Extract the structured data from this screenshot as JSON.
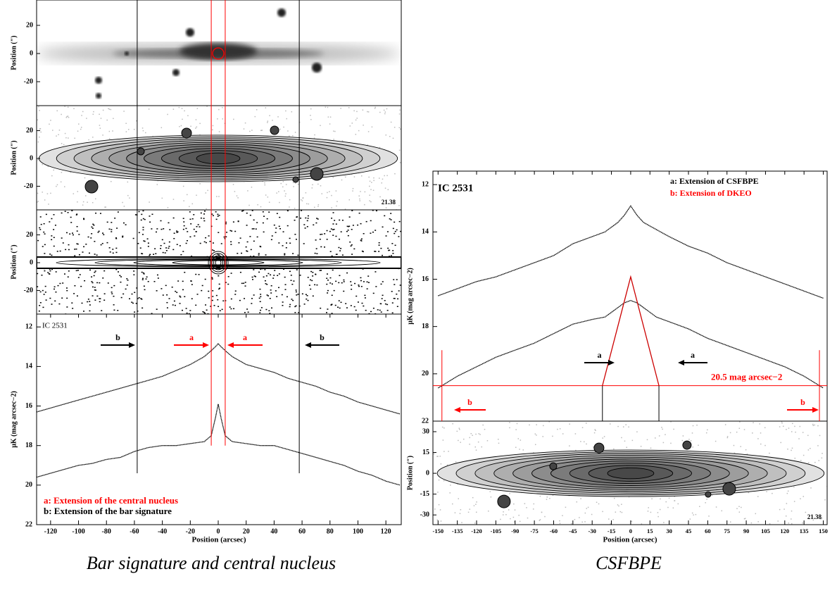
{
  "chart_data": [
    {
      "type": "line",
      "title": "IC 2531",
      "xlabel": "Position (arcsec)",
      "ylabel": "μK (mag arcsec−2)",
      "xlim": [
        -130,
        131
      ],
      "ylim": [
        11.35,
        22
      ],
      "xticks": [
        -120,
        -100,
        -80,
        -60,
        -40,
        -20,
        0,
        20,
        40,
        60,
        80,
        100,
        120
      ],
      "yticks": [
        12,
        14,
        16,
        18,
        20,
        22
      ],
      "x": [
        -130,
        -120,
        -110,
        -100,
        -90,
        -80,
        -70,
        -60,
        -50,
        -40,
        -30,
        -20,
        -10,
        -5,
        -2,
        0,
        2,
        5,
        10,
        20,
        30,
        40,
        50,
        60,
        70,
        80,
        90,
        100,
        110,
        120,
        130
      ],
      "series": [
        {
          "color": "#000000",
          "values": [
            16.3,
            16.1,
            15.9,
            15.7,
            15.5,
            15.3,
            15.1,
            14.9,
            14.7,
            14.5,
            14.2,
            13.9,
            13.5,
            13.2,
            13.0,
            12.85,
            13.0,
            13.2,
            13.5,
            13.9,
            14.1,
            14.3,
            14.6,
            14.8,
            15.0,
            15.3,
            15.5,
            15.8,
            16.0,
            16.2,
            16.4
          ]
        },
        {
          "color": "#000000",
          "values": [
            19.6,
            19.4,
            19.2,
            19.0,
            18.9,
            18.7,
            18.6,
            18.3,
            18.1,
            18.0,
            18.0,
            17.9,
            17.8,
            17.5,
            16.6,
            15.9,
            16.6,
            17.5,
            17.8,
            17.9,
            18.0,
            18.0,
            18.2,
            18.4,
            18.6,
            18.8,
            19.0,
            19.3,
            19.5,
            19.8,
            20.0
          ]
        }
      ],
      "markers": [
        {
          "x": -58,
          "to": 19.4,
          "color": "#000000"
        },
        {
          "x": 58,
          "to": 19.4,
          "color": "#000000"
        },
        {
          "x": -5,
          "to": 18.0,
          "color": "#ff0000"
        },
        {
          "x": 5,
          "to": 18.0,
          "color": "#ff0000"
        }
      ],
      "arrows": [
        {
          "label": "b",
          "color": "#000000"
        },
        {
          "label": "a",
          "color": "#ff0000"
        },
        {
          "label": "a",
          "color": "#ff0000"
        },
        {
          "label": "b",
          "color": "#000000"
        }
      ],
      "annotations": [
        {
          "text": "a: Extension of the central nucleus",
          "color": "#ff0000"
        },
        {
          "text": "b: Extension of the bar signature",
          "color": "#000000"
        }
      ],
      "panels": [
        {
          "kind": "image",
          "ylabel": "Position (″)",
          "ylim": [
            -37,
            38
          ],
          "yticks": [
            20,
            0,
            -20
          ]
        },
        {
          "kind": "contour",
          "ylabel": "Position (″)",
          "ylim": [
            -37,
            38
          ],
          "yticks": [
            20,
            0,
            -20
          ],
          "label": "21.38"
        },
        {
          "kind": "residual",
          "ylabel": "Position (″)",
          "ylim": [
            -37,
            38
          ],
          "yticks": [
            20,
            0,
            -20
          ]
        }
      ]
    },
    {
      "type": "line",
      "title": "IC 2531",
      "xlabel": "Position (arcsec)",
      "ylabel": "μK (mag arcsec−2)",
      "xlim": [
        -154,
        153
      ],
      "ylim": [
        11.43,
        22
      ],
      "xticks": [
        -150,
        -135,
        -120,
        -105,
        -90,
        -75,
        -60,
        -45,
        -30,
        -15,
        0,
        15,
        30,
        45,
        60,
        75,
        90,
        105,
        120,
        135,
        150
      ],
      "yticks": [
        12,
        14,
        16,
        18,
        20,
        22
      ],
      "x": [
        -150,
        -135,
        -120,
        -105,
        -90,
        -75,
        -60,
        -45,
        -30,
        -20,
        -10,
        -5,
        0,
        5,
        10,
        20,
        30,
        45,
        60,
        75,
        90,
        105,
        120,
        135,
        150
      ],
      "series": [
        {
          "color": "#000000",
          "values": [
            16.7,
            16.4,
            16.1,
            15.9,
            15.6,
            15.3,
            15.0,
            14.5,
            14.2,
            14.0,
            13.6,
            13.3,
            12.9,
            13.3,
            13.6,
            13.9,
            14.2,
            14.6,
            14.9,
            15.3,
            15.6,
            15.9,
            16.2,
            16.5,
            16.8
          ]
        },
        {
          "color": "#000000",
          "values": [
            20.6,
            20.1,
            19.7,
            19.3,
            19.0,
            18.7,
            18.3,
            17.9,
            17.7,
            17.6,
            17.2,
            17.0,
            16.9,
            17.0,
            17.2,
            17.6,
            17.8,
            18.1,
            18.5,
            18.8,
            19.1,
            19.4,
            19.7,
            20.1,
            20.6
          ]
        }
      ],
      "fit": {
        "color": "#cc0000",
        "x": [
          -22,
          0,
          22
        ],
        "values": [
          20.5,
          15.9,
          20.5
        ]
      },
      "level": {
        "value": 20.5,
        "label": "20.5 mag arcsec−2",
        "color": "#ff0000"
      },
      "markers": [
        {
          "x": -22,
          "from": 20.5,
          "color": "#000000"
        },
        {
          "x": 22,
          "from": 20.5,
          "color": "#000000"
        },
        {
          "x": -147,
          "from": 19.0,
          "color": "#ff0000"
        },
        {
          "x": 147,
          "from": 19.0,
          "color": "#ff0000"
        }
      ],
      "arrows": [
        {
          "label": "a",
          "color": "#000000"
        },
        {
          "label": "a",
          "color": "#000000"
        },
        {
          "label": "b",
          "color": "#ff0000"
        },
        {
          "label": "b",
          "color": "#ff0000"
        }
      ],
      "annotations": [
        {
          "text": "a: Extension of CSFBPE",
          "color": "#000000"
        },
        {
          "text": "b: Extension of DKEO",
          "color": "#ff0000"
        }
      ],
      "panels": [
        {
          "kind": "contour",
          "ylabel": "Position (″)",
          "ylim": [
            -37,
            37.6
          ],
          "yticks": [
            30,
            15,
            0,
            -15,
            -30
          ],
          "label": "21.38"
        }
      ]
    }
  ],
  "captions": [
    "Bar signature and central nucleus",
    "CSFBPE"
  ]
}
